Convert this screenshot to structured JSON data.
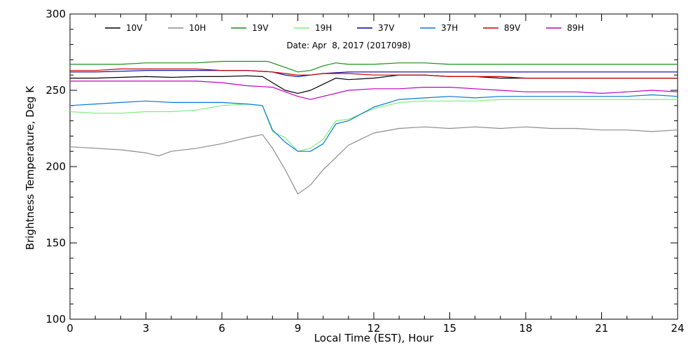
{
  "chart_data": {
    "type": "line",
    "title": "",
    "subtitle": "Date: Apr  8, 2017 (2017098)",
    "xlabel": "Local Time (EST), Hour",
    "ylabel": "Brightness Temperature, Deg K",
    "xlim": [
      0,
      24
    ],
    "ylim": [
      100,
      300
    ],
    "xticks": [
      0,
      3,
      6,
      9,
      12,
      15,
      18,
      21,
      24
    ],
    "yticks": [
      100,
      150,
      200,
      250,
      300
    ],
    "grid": false,
    "legend_position": "top",
    "series": [
      {
        "name": "10V",
        "color": "#000000",
        "points": [
          [
            0,
            258
          ],
          [
            1,
            258
          ],
          [
            2,
            258.5
          ],
          [
            3,
            259
          ],
          [
            4,
            258.5
          ],
          [
            5,
            259
          ],
          [
            6,
            259
          ],
          [
            7,
            259.5
          ],
          [
            7.6,
            259
          ],
          [
            8,
            255
          ],
          [
            8.5,
            250
          ],
          [
            9,
            248
          ],
          [
            9.5,
            250
          ],
          [
            10,
            254
          ],
          [
            10.5,
            258
          ],
          [
            11,
            257
          ],
          [
            12,
            258
          ],
          [
            13,
            260
          ],
          [
            14,
            260
          ],
          [
            15,
            259
          ],
          [
            16,
            259
          ],
          [
            17,
            258
          ],
          [
            18,
            258
          ],
          [
            19,
            258
          ],
          [
            20,
            258
          ],
          [
            21,
            258
          ],
          [
            22,
            258
          ],
          [
            23,
            258
          ],
          [
            24,
            258
          ]
        ]
      },
      {
        "name": "10H",
        "color": "#8c8c8c",
        "points": [
          [
            0,
            213
          ],
          [
            1,
            212
          ],
          [
            2,
            211
          ],
          [
            3,
            209
          ],
          [
            3.5,
            207
          ],
          [
            4,
            210
          ],
          [
            5,
            212
          ],
          [
            6,
            215
          ],
          [
            7,
            219
          ],
          [
            7.6,
            221
          ],
          [
            8,
            212
          ],
          [
            8.5,
            198
          ],
          [
            9,
            182
          ],
          [
            9.5,
            188
          ],
          [
            10,
            198
          ],
          [
            10.5,
            206
          ],
          [
            11,
            214
          ],
          [
            12,
            222
          ],
          [
            13,
            225
          ],
          [
            14,
            226
          ],
          [
            15,
            225
          ],
          [
            16,
            226
          ],
          [
            17,
            225
          ],
          [
            18,
            226
          ],
          [
            19,
            225
          ],
          [
            20,
            225
          ],
          [
            21,
            224
          ],
          [
            22,
            224
          ],
          [
            23,
            223
          ],
          [
            24,
            224
          ]
        ]
      },
      {
        "name": "19V",
        "color": "#1a8c1a",
        "points": [
          [
            0,
            267
          ],
          [
            1,
            267
          ],
          [
            2,
            267
          ],
          [
            3,
            268
          ],
          [
            4,
            268
          ],
          [
            5,
            268
          ],
          [
            6,
            269
          ],
          [
            7,
            269
          ],
          [
            7.8,
            269
          ],
          [
            8.5,
            265
          ],
          [
            9,
            262
          ],
          [
            9.5,
            263
          ],
          [
            10,
            266
          ],
          [
            10.5,
            268
          ],
          [
            11,
            267
          ],
          [
            12,
            267
          ],
          [
            13,
            268
          ],
          [
            14,
            268
          ],
          [
            15,
            267
          ],
          [
            16,
            267
          ],
          [
            17,
            267
          ],
          [
            18,
            267
          ],
          [
            19,
            267
          ],
          [
            20,
            267
          ],
          [
            21,
            267
          ],
          [
            22,
            267
          ],
          [
            23,
            267
          ],
          [
            24,
            267
          ]
        ]
      },
      {
        "name": "19H",
        "color": "#7cee7c",
        "points": [
          [
            0,
            236
          ],
          [
            1,
            235
          ],
          [
            2,
            235
          ],
          [
            3,
            236
          ],
          [
            4,
            236
          ],
          [
            5,
            237
          ],
          [
            6,
            240
          ],
          [
            7,
            241
          ],
          [
            7.6,
            240
          ],
          [
            8,
            223
          ],
          [
            8.5,
            219
          ],
          [
            9,
            210
          ],
          [
            9.5,
            212
          ],
          [
            10,
            218
          ],
          [
            10.5,
            230
          ],
          [
            11,
            231
          ],
          [
            12,
            238
          ],
          [
            13,
            242
          ],
          [
            14,
            243
          ],
          [
            15,
            243
          ],
          [
            16,
            243
          ],
          [
            17,
            244
          ],
          [
            18,
            244
          ],
          [
            19,
            244
          ],
          [
            20,
            244
          ],
          [
            21,
            244
          ],
          [
            22,
            244
          ],
          [
            23,
            244
          ],
          [
            24,
            244
          ]
        ]
      },
      {
        "name": "37V",
        "color": "#0000a0",
        "points": [
          [
            0,
            262
          ],
          [
            1,
            262
          ],
          [
            2,
            262.5
          ],
          [
            3,
            263
          ],
          [
            4,
            263
          ],
          [
            5,
            263
          ],
          [
            6,
            263
          ],
          [
            7,
            263
          ],
          [
            8,
            262
          ],
          [
            8.5,
            260
          ],
          [
            9,
            259
          ],
          [
            9.5,
            260
          ],
          [
            10,
            261
          ],
          [
            11,
            262
          ],
          [
            12,
            262
          ],
          [
            13,
            262
          ],
          [
            14,
            262
          ],
          [
            15,
            262
          ],
          [
            16,
            262
          ],
          [
            17,
            262
          ],
          [
            18,
            262
          ],
          [
            19,
            262
          ],
          [
            20,
            262
          ],
          [
            21,
            262
          ],
          [
            22,
            262
          ],
          [
            23,
            262
          ],
          [
            24,
            262
          ]
        ]
      },
      {
        "name": "37H",
        "color": "#0a78d2",
        "points": [
          [
            0,
            240
          ],
          [
            1,
            241
          ],
          [
            2,
            242
          ],
          [
            3,
            243
          ],
          [
            4,
            242
          ],
          [
            5,
            242
          ],
          [
            6,
            242
          ],
          [
            7,
            241
          ],
          [
            7.6,
            240
          ],
          [
            8,
            224
          ],
          [
            8.5,
            216
          ],
          [
            9,
            210
          ],
          [
            9.5,
            210
          ],
          [
            10,
            215
          ],
          [
            10.5,
            228
          ],
          [
            11,
            230
          ],
          [
            12,
            239
          ],
          [
            13,
            244
          ],
          [
            14,
            245
          ],
          [
            15,
            246
          ],
          [
            16,
            245
          ],
          [
            17,
            246
          ],
          [
            18,
            246
          ],
          [
            19,
            246
          ],
          [
            20,
            246
          ],
          [
            21,
            246
          ],
          [
            22,
            246
          ],
          [
            23,
            247
          ],
          [
            24,
            246
          ]
        ]
      },
      {
        "name": "89V",
        "color": "#c80000",
        "points": [
          [
            0,
            263
          ],
          [
            1,
            263
          ],
          [
            2,
            264
          ],
          [
            3,
            264
          ],
          [
            4,
            264
          ],
          [
            5,
            264
          ],
          [
            6,
            263
          ],
          [
            7,
            263
          ],
          [
            8,
            262
          ],
          [
            8.5,
            261
          ],
          [
            9,
            260
          ],
          [
            9.5,
            260
          ],
          [
            10,
            261
          ],
          [
            11,
            261
          ],
          [
            12,
            260
          ],
          [
            13,
            260
          ],
          [
            14,
            260
          ],
          [
            15,
            259
          ],
          [
            16,
            259
          ],
          [
            17,
            259
          ],
          [
            18,
            258
          ],
          [
            19,
            258
          ],
          [
            20,
            258
          ],
          [
            21,
            258
          ],
          [
            22,
            258
          ],
          [
            23,
            258
          ],
          [
            24,
            258
          ]
        ]
      },
      {
        "name": "89H",
        "color": "#c000c0",
        "points": [
          [
            0,
            256
          ],
          [
            1,
            256
          ],
          [
            2,
            256
          ],
          [
            3,
            256
          ],
          [
            4,
            256
          ],
          [
            5,
            256
          ],
          [
            6,
            255
          ],
          [
            7,
            253
          ],
          [
            8,
            252
          ],
          [
            8.5,
            249
          ],
          [
            9,
            246
          ],
          [
            9.5,
            244
          ],
          [
            10,
            246
          ],
          [
            11,
            250
          ],
          [
            12,
            251
          ],
          [
            13,
            251
          ],
          [
            14,
            252
          ],
          [
            15,
            252
          ],
          [
            16,
            251
          ],
          [
            17,
            250
          ],
          [
            18,
            249
          ],
          [
            19,
            249
          ],
          [
            20,
            249
          ],
          [
            21,
            248
          ],
          [
            22,
            249
          ],
          [
            23,
            250
          ],
          [
            24,
            249
          ]
        ]
      }
    ]
  }
}
